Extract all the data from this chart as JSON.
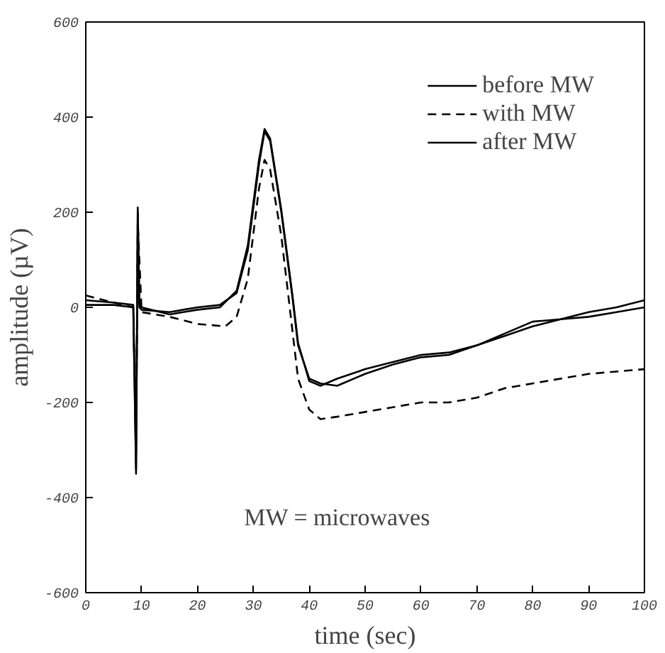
{
  "chart_data": {
    "type": "line",
    "xlabel": "time (sec)",
    "ylabel": "amplitude (µV)",
    "xlim": [
      0,
      100
    ],
    "ylim": [
      -600,
      600
    ],
    "xticks": [
      0,
      10,
      20,
      30,
      40,
      50,
      60,
      70,
      80,
      90,
      100
    ],
    "yticks": [
      -600,
      -400,
      -200,
      0,
      200,
      400,
      600
    ],
    "grid": false,
    "legend": "top right",
    "marker": "none",
    "annotations": [
      "MW = microwaves"
    ],
    "series": [
      {
        "name": "before MW",
        "color": "#000000",
        "line_style": "solid",
        "x": [
          0,
          5,
          8.5,
          9,
          9.3,
          9.6,
          10,
          15,
          20,
          24,
          27,
          29,
          31,
          32,
          33,
          35,
          37,
          38,
          40,
          42,
          45,
          50,
          55,
          60,
          65,
          70,
          75,
          80,
          85,
          90,
          95,
          100
        ],
        "values": [
          5,
          5,
          0,
          -340,
          200,
          0,
          -5,
          -10,
          0,
          5,
          30,
          120,
          300,
          370,
          350,
          200,
          20,
          -80,
          -150,
          -160,
          -165,
          -140,
          -120,
          -105,
          -100,
          -80,
          -60,
          -40,
          -25,
          -20,
          -10,
          0
        ]
      },
      {
        "name": "with MW",
        "color": "#000000",
        "line_style": "dashed",
        "x": [
          0,
          5,
          8.5,
          9,
          9.3,
          10,
          15,
          20,
          25,
          27,
          29,
          31,
          32,
          33,
          35,
          37,
          38,
          40,
          42,
          45,
          50,
          55,
          60,
          65,
          70,
          75,
          80,
          85,
          90,
          95,
          100
        ],
        "values": [
          25,
          10,
          0,
          -300,
          180,
          -10,
          -20,
          -35,
          -40,
          -20,
          60,
          250,
          310,
          290,
          150,
          -50,
          -150,
          -215,
          -235,
          -230,
          -220,
          -210,
          -200,
          -200,
          -190,
          -170,
          -160,
          -150,
          -140,
          -135,
          -130
        ]
      },
      {
        "name": "after MW",
        "color": "#000000",
        "line_style": "solid",
        "x": [
          0,
          5,
          8.5,
          9,
          9.3,
          9.6,
          10,
          15,
          20,
          24,
          27,
          29,
          31,
          32,
          33,
          35,
          37,
          38,
          40,
          42,
          45,
          50,
          55,
          60,
          65,
          70,
          75,
          80,
          85,
          90,
          95,
          100
        ],
        "values": [
          15,
          10,
          5,
          -350,
          210,
          5,
          0,
          -15,
          -5,
          0,
          35,
          130,
          310,
          375,
          355,
          205,
          25,
          -75,
          -155,
          -165,
          -150,
          -130,
          -115,
          -100,
          -95,
          -80,
          -55,
          -30,
          -25,
          -10,
          0,
          15
        ]
      }
    ]
  }
}
